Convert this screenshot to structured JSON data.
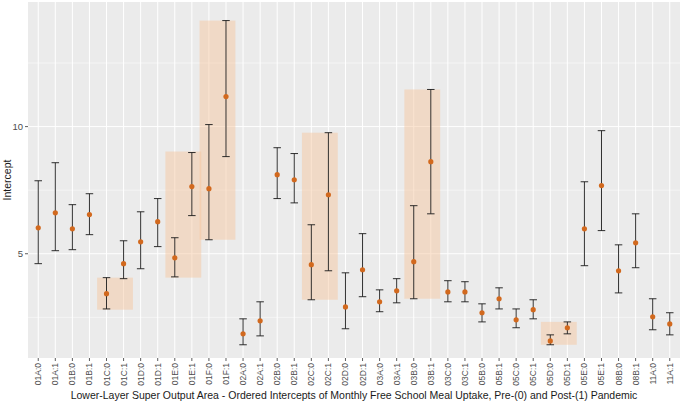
{
  "chart_data": {
    "type": "errorbar",
    "x_label": "Lower-Layer Super Output Area - Ordered Intercepts of Monthly Free School Meal Uptake, Pre-(0) and Post-(1) Pandemic",
    "y_label": "Intercept",
    "categories": [
      "01A:0",
      "01A:1",
      "01B:0",
      "01B:1",
      "01C:0",
      "01C:1",
      "01D:0",
      "01D:1",
      "01E:0",
      "01E:1",
      "01F:0",
      "01F:1",
      "02A:0",
      "02A:1",
      "02B:0",
      "02B:1",
      "02C:0",
      "02C:1",
      "02D:0",
      "02D:1",
      "03A:0",
      "03A:1",
      "03B:0",
      "03B:1",
      "03C:0",
      "03C:1",
      "05B:0",
      "05B:1",
      "05C:0",
      "05C:1",
      "05D:0",
      "05D:1",
      "05E:0",
      "05E:1",
      "08B:0",
      "08B:1",
      "11A:0",
      "11A:1"
    ],
    "values": [
      6.02,
      6.61,
      5.98,
      6.54,
      3.43,
      4.61,
      5.47,
      6.26,
      4.84,
      7.64,
      7.56,
      11.18,
      1.85,
      2.36,
      8.11,
      7.91,
      4.57,
      7.32,
      2.91,
      4.37,
      3.11,
      3.54,
      4.69,
      8.62,
      3.5,
      3.5,
      2.68,
      3.23,
      2.4,
      2.8,
      1.57,
      2.09,
      5.98,
      7.68,
      4.33,
      5.43,
      2.52,
      2.24
    ],
    "lower": [
      4.61,
      5.12,
      5.16,
      5.75,
      2.83,
      4.02,
      4.41,
      5.28,
      4.09,
      6.5,
      5.55,
      8.82,
      1.42,
      1.77,
      7.17,
      7.0,
      3.19,
      4.33,
      2.05,
      3.31,
      2.72,
      3.07,
      3.23,
      6.57,
      3.11,
      3.11,
      2.32,
      2.83,
      2.09,
      2.44,
      1.42,
      1.85,
      4.53,
      5.91,
      3.46,
      4.45,
      2.01,
      1.81
    ],
    "upper": [
      7.87,
      8.58,
      6.93,
      7.36,
      4.06,
      5.51,
      6.65,
      7.17,
      5.63,
      8.98,
      10.08,
      14.17,
      2.44,
      3.11,
      9.17,
      8.94,
      6.14,
      9.76,
      4.25,
      5.79,
      3.58,
      4.02,
      6.89,
      11.46,
      3.94,
      3.9,
      3.03,
      3.66,
      2.83,
      3.19,
      1.81,
      2.32,
      7.83,
      9.84,
      5.35,
      6.57,
      3.23,
      2.68
    ],
    "highlights": [
      {
        "start": "01C:0",
        "end": "01C:1",
        "low": 2.8,
        "high": 4.06
      },
      {
        "start": "01E:0",
        "end": "01E:1",
        "low": 4.06,
        "high": 9.02
      },
      {
        "start": "01F:0",
        "end": "01F:1",
        "low": 5.55,
        "high": 14.17
      },
      {
        "start": "02C:0",
        "end": "02C:1",
        "low": 3.19,
        "high": 9.76
      },
      {
        "start": "03B:0",
        "end": "03B:1",
        "low": 3.23,
        "high": 11.46
      },
      {
        "start": "05D:0",
        "end": "05D:1",
        "low": 1.42,
        "high": 2.32
      }
    ],
    "color": "#d2691e",
    "ylim": [
      0.9,
      14.9
    ],
    "yticks": [
      5,
      10
    ],
    "minor_yticks": [
      2.5,
      7.5,
      12.5
    ],
    "grid": true
  }
}
